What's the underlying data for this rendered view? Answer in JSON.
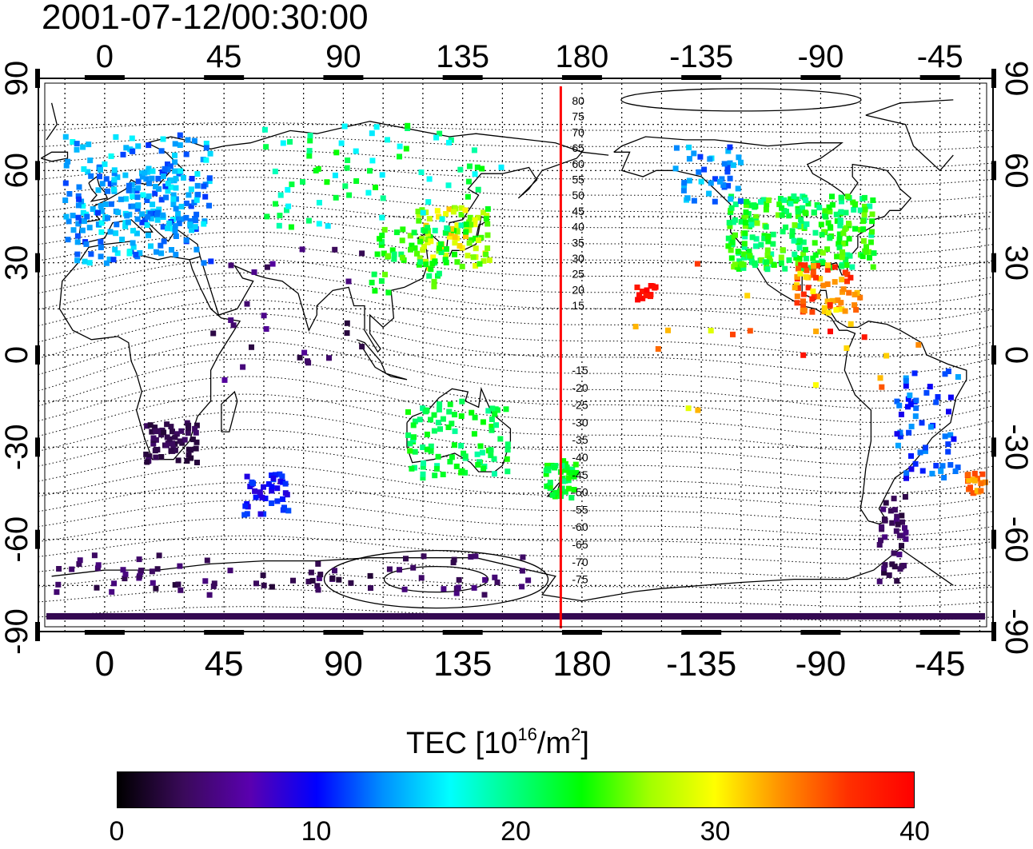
{
  "title": "2001-07-12/00:30:00",
  "map": {
    "top_lon_labels": [
      "0",
      "45",
      "90",
      "135",
      "180",
      "-135",
      "-90",
      "-45"
    ],
    "bottom_lon_labels": [
      "0",
      "45",
      "90",
      "135",
      "180",
      "-135",
      "-90",
      "-45"
    ],
    "left_lat_labels": [
      "90",
      "60",
      "30",
      "0",
      "-30",
      "-60",
      "-90"
    ],
    "right_lat_labels": [
      "90",
      "60",
      "30",
      "0",
      "-30",
      "-60",
      "-90"
    ],
    "lon_ticks": [
      0,
      45,
      90,
      135,
      180,
      -135,
      -90,
      -45
    ],
    "lat_ticks": [
      90,
      60,
      30,
      0,
      -30,
      -60,
      -90
    ],
    "meridian_line_lon": 172,
    "meridian_line_color": "#ff0000",
    "modip_labels_north": [
      "80",
      "75",
      "70",
      "65",
      "60",
      "55",
      "50",
      "45",
      "40",
      "35",
      "30",
      "25",
      "20",
      "15"
    ],
    "modip_labels_south": [
      "-15",
      "-20",
      "-25",
      "-30",
      "-35",
      "-40",
      "-45",
      "-50",
      "-55",
      "-60",
      "-65",
      "-70",
      "-75"
    ],
    "grid": true
  },
  "colorbar": {
    "title_prefix": "TEC  [10",
    "title_exp1": "16",
    "title_mid": "/m",
    "title_exp2": "2",
    "title_suffix": "]",
    "tick_labels": [
      "0",
      "10",
      "20",
      "30",
      "40"
    ],
    "range": [
      0,
      40
    ],
    "colors": [
      "#000000",
      "#3a0a5a",
      "#5a00b0",
      "#0000ff",
      "#0090ff",
      "#00ffff",
      "#00ff80",
      "#00ff00",
      "#a0ff00",
      "#ffff00",
      "#ff9000",
      "#ff3000",
      "#ff0000"
    ]
  },
  "chart_data": {
    "type": "heatmap",
    "title": "2001-07-12/00:30:00",
    "xlabel": "",
    "ylabel": "",
    "colorbar_label": "TEC [10^16/m^2]",
    "value_range": [
      0,
      40
    ],
    "regions": [
      {
        "name": "Europe",
        "value": 14
      },
      {
        "name": "North America",
        "value": 22
      },
      {
        "name": "Gulf of Mexico / Caribbean",
        "value": 35
      },
      {
        "name": "Japan",
        "value": 30
      },
      {
        "name": "East Asia",
        "value": 24
      },
      {
        "name": "Australia",
        "value": 20
      },
      {
        "name": "New Zealand",
        "value": 21
      },
      {
        "name": "Southern Africa",
        "value": 3
      },
      {
        "name": "South America east coast",
        "value": 10
      },
      {
        "name": "South Atlantic",
        "value": 33
      },
      {
        "name": "Antarctica",
        "value": 3
      },
      {
        "name": "Hawaii",
        "value": 38
      }
    ]
  }
}
